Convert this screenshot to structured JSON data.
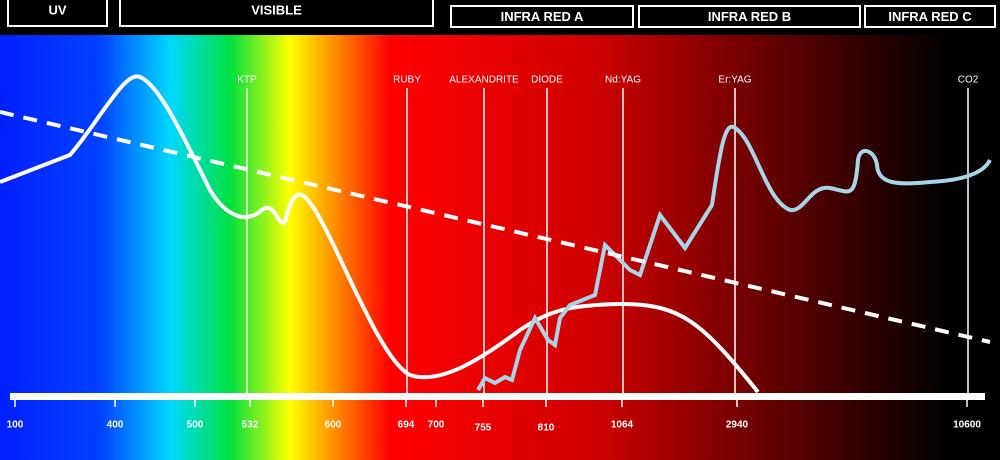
{
  "bands": [
    "UV",
    "VISIBLE",
    "INFRA RED A",
    "INFRA RED B",
    "INFRA RED C"
  ],
  "lasers": [
    "KTP",
    "RUBY",
    "ALEXANDRITE",
    "DIODE",
    "Nd:YAG",
    "Er:YAG",
    "CO2"
  ],
  "axis": {
    "labels": [
      100,
      400,
      500,
      532,
      600,
      694,
      700,
      755,
      810,
      1064,
      2940,
      10600
    ]
  }
}
